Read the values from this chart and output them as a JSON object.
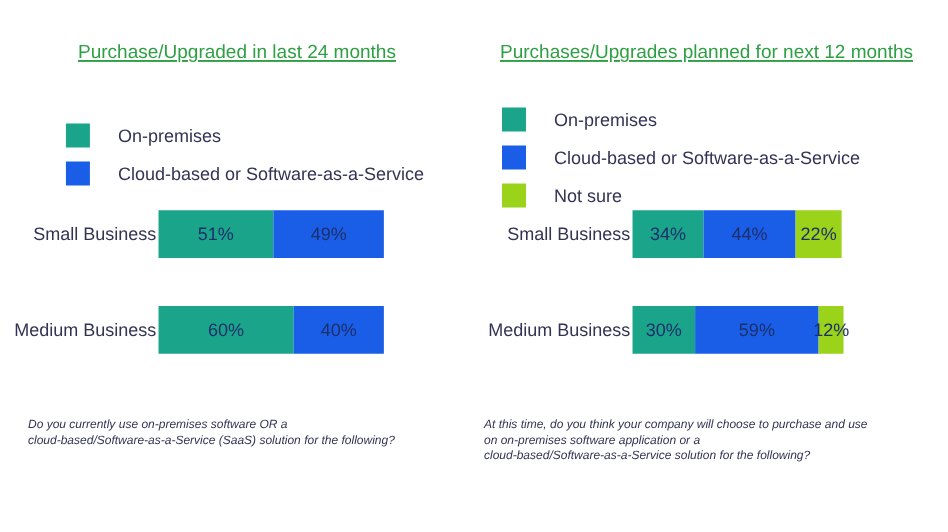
{
  "chart_data": [
    {
      "type": "bar",
      "orientation": "horizontal",
      "stacked": true,
      "legend": "top left",
      "title": "Purchase/Upgraded in last 24 months",
      "categories": [
        "Small Business",
        "Medium Business"
      ],
      "series": [
        {
          "name": "On-premises",
          "color": "#1aa58a",
          "values": [
            51,
            60
          ],
          "value_labels": [
            "51%",
            "60%"
          ]
        },
        {
          "name": "Cloud-based or Software-as-a-Service",
          "color": "#1a5ee8",
          "values": [
            49,
            40
          ],
          "value_labels": [
            "49%",
            "40%"
          ]
        }
      ],
      "annotations": [
        "Do you currently use on-premises software OR a cloud-based/Software-as-a-Service (SaaS) solution for the following?"
      ]
    },
    {
      "type": "bar",
      "orientation": "horizontal",
      "stacked": true,
      "legend": "top left",
      "title": "Purchases/Upgrades planned for next 12 months",
      "categories": [
        "Small Business",
        "Medium Business"
      ],
      "series": [
        {
          "name": "On-premises",
          "color": "#1aa58a",
          "values": [
            34,
            30
          ],
          "value_labels": [
            "34%",
            "30%"
          ]
        },
        {
          "name": "Cloud-based or Software-as-a-Service",
          "color": "#1a5ee8",
          "values": [
            44,
            59
          ],
          "value_labels": [
            "44%",
            "59%"
          ]
        },
        {
          "name": "Not sure",
          "color": "#9ad31a",
          "values": [
            22,
            12
          ],
          "value_labels": [
            "22%",
            "12%"
          ]
        }
      ],
      "annotations": [
        "At this time, do you think your company will choose to purchase and use on on-premises software application or a cloud-based/Software-as-a-Service solution for the following?"
      ]
    }
  ]
}
